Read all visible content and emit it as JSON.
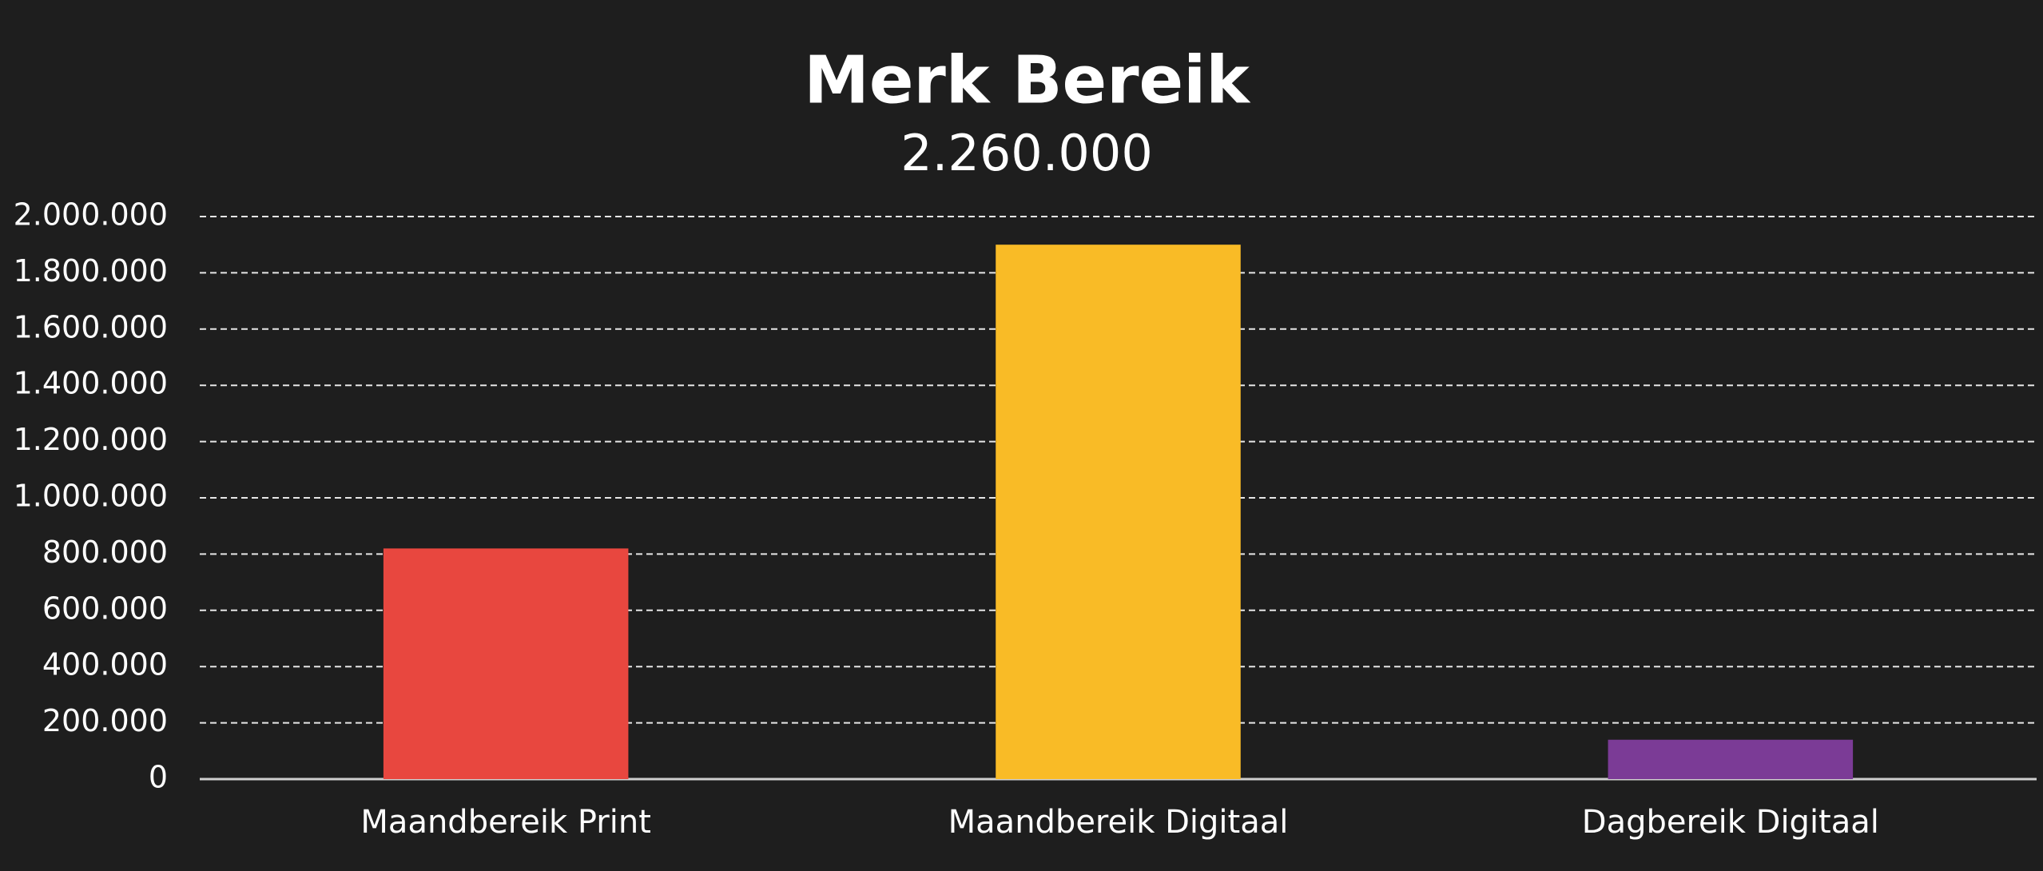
{
  "chart_data": {
    "type": "bar",
    "title": "Merk Bereik",
    "subtitle": "2.260.000",
    "categories": [
      "Maandbereik Print",
      "Maandbereik Digitaal",
      "Dagbereik Digitaal"
    ],
    "values": [
      820000,
      1900000,
      140000
    ],
    "colors": [
      "#e8473f",
      "#f9bb26",
      "#7b3b96"
    ],
    "ylim": [
      0,
      2000000
    ],
    "yticks": [
      0,
      {
        "value": 200000,
        "label": "200.000"
      },
      {
        "value": 400000,
        "label": "400.000"
      },
      {
        "value": 600000,
        "label": "600.000"
      },
      {
        "value": 800000,
        "label": "800.000"
      },
      {
        "value": 1000000,
        "label": "1.000.000"
      },
      {
        "value": 1200000,
        "label": "1.200.000"
      },
      {
        "value": 1400000,
        "label": "1.400.000"
      },
      {
        "value": 1600000,
        "label": "1.600.000"
      },
      {
        "value": 1800000,
        "label": "1.800.000"
      },
      {
        "value": 2000000,
        "label": "2.000.000"
      }
    ],
    "grid": true
  }
}
